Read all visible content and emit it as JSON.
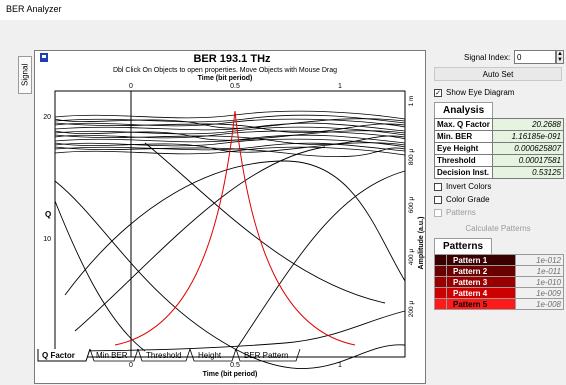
{
  "window": {
    "title": "BER Analyzer"
  },
  "side_tab": {
    "label": "Signal"
  },
  "plot": {
    "title": "BER 193.1 THz",
    "instructions": "Dbl Click On Objects to open properties.  Move Objects with Mouse Drag",
    "top_axis_label": "Time (bit period)",
    "bottom_axis_label": "Time (bit period)",
    "left_axis_label": "Q",
    "right_axis_label": "Amplitude (a.u.)",
    "x_ticks": [
      "0",
      "0.5",
      "1"
    ],
    "left_ticks": [
      "20",
      "10"
    ],
    "right_ticks": [
      "1 m",
      "800 μ",
      "600 μ",
      "400 μ",
      "200 μ"
    ]
  },
  "bottom_tabs": [
    "Q Factor",
    "Min BER",
    "Threshold",
    "Height",
    "BER Pattern"
  ],
  "right_panel": {
    "signal_index_label": "Signal Index:",
    "signal_index_value": "0",
    "autoset_label": "Auto Set",
    "show_eye_label": "Show Eye Diagram",
    "show_eye_checked": true,
    "analysis_header": "Analysis",
    "analysis": [
      {
        "key": "Max. Q Factor",
        "value": "20.2688"
      },
      {
        "key": "Min. BER",
        "value": "1.16185e-091"
      },
      {
        "key": "Eye Height",
        "value": "0.000625807"
      },
      {
        "key": "Threshold",
        "value": "0.00017581"
      },
      {
        "key": "Decision Inst.",
        "value": "0.53125"
      }
    ],
    "invert_colors_label": "Invert Colors",
    "color_grade_label": "Color Grade",
    "patterns_check_label": "Patterns",
    "calculate_patterns_label": "Calculate Patterns",
    "patterns_header": "Patterns",
    "patterns": [
      {
        "name": "Pattern 1",
        "value": "1e-012",
        "color": "#3a0000"
      },
      {
        "name": "Pattern 2",
        "value": "1e-011",
        "color": "#6b0000"
      },
      {
        "name": "Pattern 3",
        "value": "1e-010",
        "color": "#9a0000"
      },
      {
        "name": "Pattern 4",
        "value": "1e-009",
        "color": "#cc0000"
      },
      {
        "name": "Pattern 5",
        "value": "1e-008",
        "color": "#ff1a1a"
      }
    ]
  },
  "colors": {
    "q_curve": "#e00000",
    "traces": "#000000",
    "accent": "#000080"
  }
}
